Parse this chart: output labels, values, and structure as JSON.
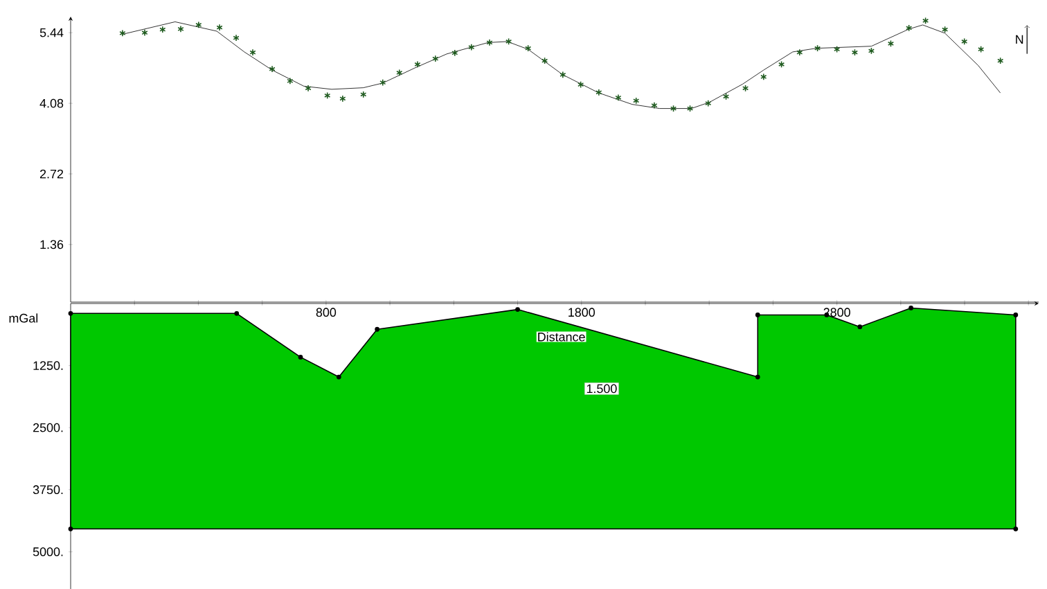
{
  "chart_data": [
    {
      "type": "line",
      "xlim": [
        -200,
        3590
      ],
      "ylim": [
        0.25,
        5.75
      ],
      "ylabel": "mGal",
      "tick_labels": "y",
      "annotations": [
        "N"
      ],
      "xticks": [
        {
          "value": 50,
          "label": null
        },
        {
          "value": 300,
          "label": null
        },
        {
          "value": 550,
          "label": null
        },
        {
          "value": 800,
          "label": null
        },
        {
          "value": 1050,
          "label": null
        },
        {
          "value": 1300,
          "label": null
        },
        {
          "value": 1550,
          "label": null
        },
        {
          "value": 1800,
          "label": null
        },
        {
          "value": 2050,
          "label": null
        },
        {
          "value": 2300,
          "label": null
        },
        {
          "value": 2550,
          "label": null
        },
        {
          "value": 2800,
          "label": null
        },
        {
          "value": 3050,
          "label": null
        },
        {
          "value": 3300,
          "label": null
        },
        {
          "value": 3550,
          "label": null
        }
      ],
      "yticks": [
        1.36,
        2.72,
        4.08,
        5.44
      ],
      "series": [
        {
          "type": "scatter",
          "marker": "cross",
          "color": "#1e5a1e",
          "x": [
            3,
            90,
            160,
            231,
            301,
            383,
            448,
            513,
            589,
            659,
            730,
            805,
            865,
            946,
            1022,
            1087,
            1158,
            1228,
            1304,
            1369,
            1440,
            1515,
            1591,
            1656,
            1727,
            1797,
            1868,
            1944,
            2014,
            2085,
            2160,
            2225,
            2296,
            2366,
            2442,
            2513,
            2583,
            2654,
            2724,
            2800,
            2870,
            2935,
            3011,
            3082,
            3147,
            3223,
            3299,
            3364,
            3440
          ],
          "values": [
            5.43,
            5.44,
            5.5,
            5.51,
            5.59,
            5.54,
            5.34,
            5.06,
            4.74,
            4.51,
            4.37,
            4.23,
            4.17,
            4.25,
            4.48,
            4.67,
            4.83,
            4.94,
            5.05,
            5.16,
            5.25,
            5.27,
            5.14,
            4.9,
            4.63,
            4.44,
            4.29,
            4.19,
            4.13,
            4.04,
            3.98,
            3.98,
            4.08,
            4.21,
            4.37,
            4.59,
            4.83,
            5.06,
            5.14,
            5.12,
            5.06,
            5.09,
            5.23,
            5.53,
            5.67,
            5.5,
            5.27,
            5.12,
            4.9
          ]
        },
        {
          "type": "line",
          "color": "#000000",
          "x": [
            3,
            209,
            372,
            480,
            589,
            713,
            822,
            946,
            1022,
            1147,
            1272,
            1434,
            1510,
            1591,
            1727,
            1868,
            1998,
            2106,
            2230,
            2301,
            2431,
            2513,
            2627,
            2719,
            2935,
            3082,
            3136,
            3223,
            3353,
            3440
          ],
          "values": [
            5.41,
            5.65,
            5.47,
            5.07,
            4.72,
            4.41,
            4.35,
            4.38,
            4.47,
            4.76,
            5.03,
            5.25,
            5.27,
            5.12,
            4.63,
            4.28,
            4.06,
            3.98,
            3.98,
            4.1,
            4.45,
            4.72,
            5.07,
            5.14,
            5.18,
            5.51,
            5.59,
            5.43,
            4.81,
            4.28
          ]
        }
      ]
    },
    {
      "type": "area",
      "xlim": [
        -200,
        3590
      ],
      "ylim": [
        5750,
        0
      ],
      "xlabel": "Distance",
      "marker": "circle",
      "annotations": [
        "1.500"
      ],
      "xticks": [
        {
          "value": 50,
          "label": null
        },
        {
          "value": 300,
          "label": null
        },
        {
          "value": 550,
          "label": null
        },
        800,
        {
          "value": 1050,
          "label": null
        },
        {
          "value": 1300,
          "label": null
        },
        {
          "value": 1550,
          "label": null
        },
        1800,
        {
          "value": 2050,
          "label": null
        },
        {
          "value": 2300,
          "label": null
        },
        {
          "value": 2550,
          "label": null
        },
        2800,
        {
          "value": 3050,
          "label": null
        },
        {
          "value": 3300,
          "label": null
        },
        {
          "value": 3550,
          "label": null
        }
      ],
      "yticks": [
        {
          "value": 1250,
          "label": "1250."
        },
        {
          "value": 2500,
          "label": "2500."
        },
        {
          "value": 3750,
          "label": "3750."
        },
        {
          "value": 5000,
          "label": "5000."
        }
      ],
      "series": [
        {
          "color": "#00c800",
          "x": [
            -200,
            450,
            700,
            850,
            1000,
            1550,
            2490,
            2490,
            2760,
            2890,
            3090,
            3500,
            3500,
            -200
          ],
          "values": [
            200,
            200,
            1080,
            1480,
            520,
            120,
            1480,
            230,
            230,
            470,
            90,
            230,
            4540,
            4540
          ]
        }
      ]
    }
  ]
}
